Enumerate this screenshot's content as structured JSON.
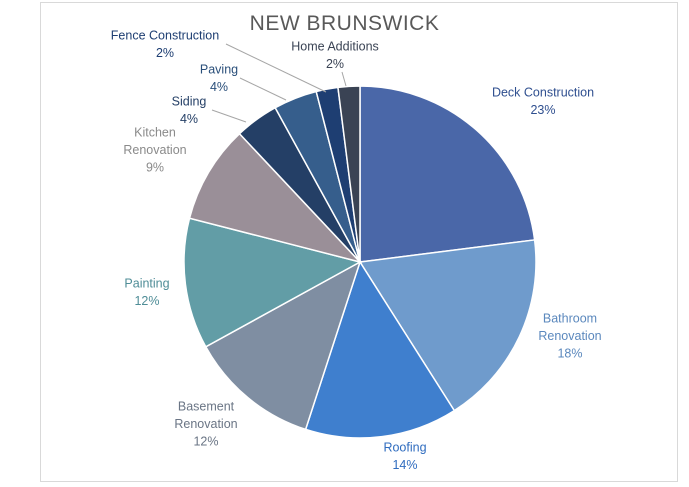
{
  "chart_data": {
    "type": "pie",
    "title": "NEW BRUNSWICK",
    "slices": [
      {
        "label": [
          "Deck Construction"
        ],
        "pct": "23%",
        "value": 23,
        "color": "#4a67a8",
        "text_color": "#2f4f8f"
      },
      {
        "label": [
          "Bathroom",
          "Renovation"
        ],
        "pct": "18%",
        "value": 18,
        "color": "#6f9bcc",
        "text_color": "#5b88bd"
      },
      {
        "label": [
          "Roofing"
        ],
        "pct": "14%",
        "value": 14,
        "color": "#3f7fce",
        "text_color": "#2f6cbf"
      },
      {
        "label": [
          "Basement",
          "Renovation"
        ],
        "pct": "12%",
        "value": 12,
        "color": "#7f8ea2",
        "text_color": "#6a7585"
      },
      {
        "label": [
          "Painting"
        ],
        "pct": "12%",
        "value": 12,
        "color": "#629da6",
        "text_color": "#4f8d97"
      },
      {
        "label": [
          "Kitchen",
          "Renovation"
        ],
        "pct": "9%",
        "value": 9,
        "color": "#9a8f98",
        "text_color": "#8a8a8a"
      },
      {
        "label": [
          "Siding"
        ],
        "pct": "4%",
        "value": 4,
        "color": "#243f66",
        "text_color": "#243f66"
      },
      {
        "label": [
          "Paving"
        ],
        "pct": "4%",
        "value": 4,
        "color": "#365e8c",
        "text_color": "#2a4f7a"
      },
      {
        "label": [
          "Fence Construction"
        ],
        "pct": "2%",
        "value": 2,
        "color": "#1e3e72",
        "text_color": "#1e3e72"
      },
      {
        "label": [
          "Home Additions"
        ],
        "pct": "2%",
        "value": 2,
        "color": "#3a4354",
        "text_color": "#3a4354"
      }
    ]
  }
}
